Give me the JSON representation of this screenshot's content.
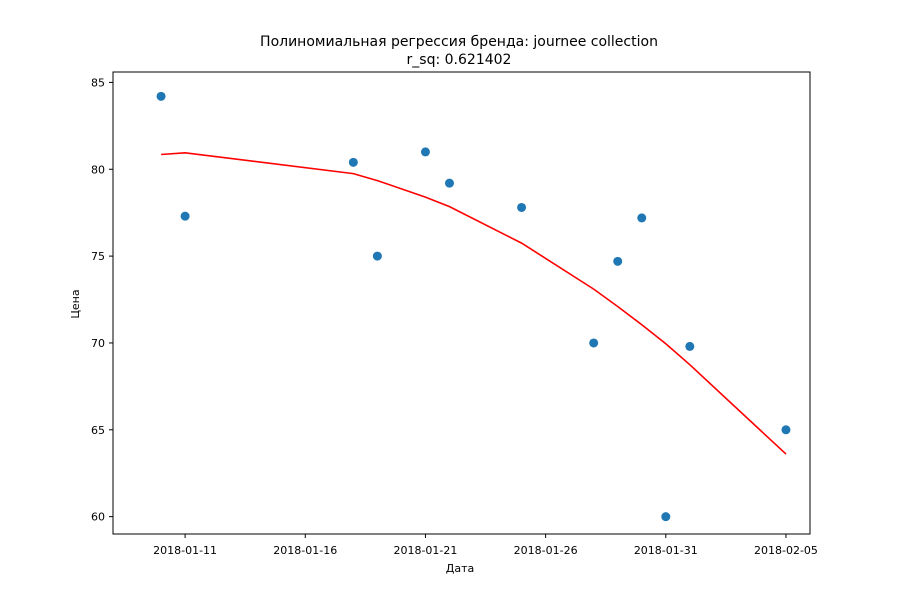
{
  "chart_data": {
    "type": "scatter",
    "title": "Полиномиальная регрессия бренда: journee collection",
    "subtitle": "r_sq:  0.621402",
    "xlabel": "Дата",
    "ylabel": "Цена",
    "xlim": [
      "2018-01-08",
      "2018-02-06"
    ],
    "ylim": [
      59,
      85.6
    ],
    "x_ticks": [
      "2018-01-11",
      "2018-01-16",
      "2018-01-21",
      "2018-01-26",
      "2018-01-31",
      "2018-02-05"
    ],
    "y_ticks": [
      60,
      65,
      70,
      75,
      80,
      85
    ],
    "grid": false,
    "series": [
      {
        "kind": "scatter",
        "color": "#1f77b4",
        "points": [
          {
            "x": "2018-01-10",
            "y": 84.2
          },
          {
            "x": "2018-01-11",
            "y": 77.3
          },
          {
            "x": "2018-01-18",
            "y": 80.4
          },
          {
            "x": "2018-01-19",
            "y": 75.0
          },
          {
            "x": "2018-01-21",
            "y": 81.0
          },
          {
            "x": "2018-01-22",
            "y": 79.2
          },
          {
            "x": "2018-01-25",
            "y": 77.8
          },
          {
            "x": "2018-01-28",
            "y": 70.0
          },
          {
            "x": "2018-01-29",
            "y": 74.7
          },
          {
            "x": "2018-01-30",
            "y": 77.2
          },
          {
            "x": "2018-01-31",
            "y": 60.0
          },
          {
            "x": "2018-02-01",
            "y": 69.8
          },
          {
            "x": "2018-02-05",
            "y": 65.0
          }
        ]
      },
      {
        "kind": "line",
        "color": "#ff0000",
        "points": [
          {
            "x": "2018-01-10",
            "y": 80.85
          },
          {
            "x": "2018-01-11",
            "y": 80.95
          },
          {
            "x": "2018-01-18",
            "y": 79.75
          },
          {
            "x": "2018-01-19",
            "y": 79.35
          },
          {
            "x": "2018-01-21",
            "y": 78.4
          },
          {
            "x": "2018-01-22",
            "y": 77.85
          },
          {
            "x": "2018-01-25",
            "y": 75.75
          },
          {
            "x": "2018-01-28",
            "y": 73.1
          },
          {
            "x": "2018-01-29",
            "y": 72.1
          },
          {
            "x": "2018-01-30",
            "y": 71.05
          },
          {
            "x": "2018-01-31",
            "y": 69.95
          },
          {
            "x": "2018-02-01",
            "y": 68.75
          },
          {
            "x": "2018-02-05",
            "y": 63.6
          }
        ]
      }
    ]
  }
}
